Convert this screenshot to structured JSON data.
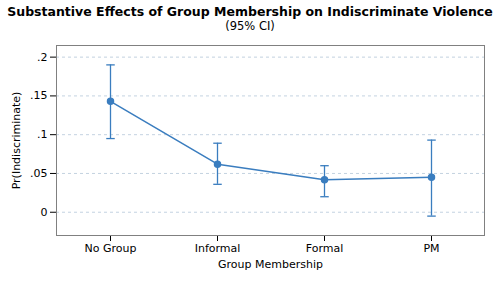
{
  "chart_data": {
    "type": "line",
    "title": "Substantive Effects of Group Membership on Indiscriminate Violence",
    "subtitle": "(95% CI)",
    "categories": [
      "No Group",
      "Informal",
      "Formal",
      "PM"
    ],
    "values": [
      0.143,
      0.062,
      0.042,
      0.045
    ],
    "ci_lower": [
      0.095,
      0.036,
      0.02,
      -0.005
    ],
    "ci_upper": [
      0.19,
      0.089,
      0.06,
      0.093
    ],
    "color": "#3a7dbf",
    "marker": "circle",
    "xlabel": "Group Membership",
    "ylabel": "Pr(Indiscriminate)",
    "ylim": [
      -0.03,
      0.215
    ],
    "yticks": [
      0,
      {
        "value": 0.05,
        "label": ".05"
      },
      {
        "value": 0.1,
        "label": ".1"
      },
      {
        "value": 0.15,
        "label": ".15"
      },
      {
        "value": 0.2,
        "label": ".2"
      }
    ],
    "grid": true
  }
}
